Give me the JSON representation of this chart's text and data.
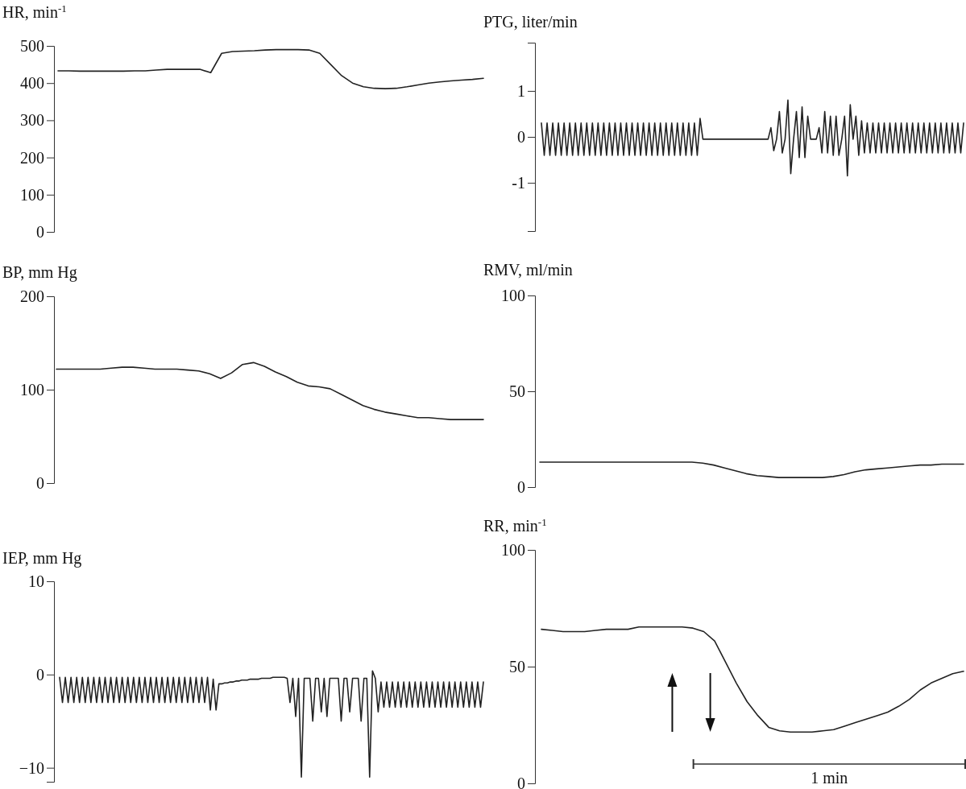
{
  "chart_data": [
    {
      "type": "line",
      "ylabel": "HR, min$^{-1}$",
      "ylim": [
        0,
        500
      ],
      "yticks": [
        0,
        100,
        200,
        300,
        400,
        500
      ],
      "categories": [
        null,
        null,
        null,
        null,
        null,
        null,
        null,
        null,
        null,
        null,
        null,
        null,
        null,
        null,
        null,
        null,
        null,
        null,
        null,
        null,
        null,
        null,
        null,
        null,
        null,
        null,
        null,
        null,
        null,
        null,
        null,
        null,
        null,
        null,
        null,
        null,
        null,
        null,
        null,
        null
      ],
      "series": [
        {
          "color": "#222222",
          "values": [
            433,
            433,
            432,
            432,
            432,
            432,
            432,
            433,
            433,
            435,
            437,
            437,
            437,
            437,
            428,
            480,
            485,
            486,
            487,
            489,
            490,
            490,
            490,
            489,
            480,
            450,
            420,
            400,
            390,
            386,
            385,
            386,
            390,
            395,
            400,
            403,
            406,
            408,
            410,
            413
          ]
        }
      ]
    },
    {
      "type": "line",
      "ylabel": "PTG, liter/min",
      "ylim": [
        -2.05,
        2.05
      ],
      "yticks": [
        {
          "value": -1,
          "label": "-1"
        },
        0,
        1
      ],
      "categories": [
        null,
        null,
        null,
        null,
        null,
        null,
        null,
        null,
        null,
        null,
        null,
        null,
        null,
        null,
        null,
        null,
        null,
        null,
        null,
        null,
        null,
        null,
        null,
        null,
        null,
        null,
        null,
        null,
        null,
        null,
        null,
        null,
        null,
        null,
        null,
        null,
        null,
        null,
        null,
        null,
        null,
        null,
        null,
        null,
        null,
        null,
        null,
        null,
        null,
        null,
        null,
        null,
        null,
        null,
        null,
        null,
        null,
        null,
        null,
        null,
        null,
        null,
        null,
        null,
        null,
        null,
        null,
        null,
        null,
        null,
        null,
        null,
        null,
        null,
        null,
        null,
        null,
        null,
        null,
        null,
        null,
        null,
        null,
        null,
        null,
        null,
        null,
        null,
        null,
        null,
        null,
        null,
        null,
        null,
        null,
        null,
        null,
        null,
        null,
        null,
        null,
        null,
        null,
        null,
        null,
        null,
        null,
        null,
        null,
        null,
        null,
        null,
        null,
        null,
        null,
        null,
        null,
        null,
        null,
        null,
        null,
        null,
        null,
        null,
        null,
        null,
        null,
        null,
        null,
        null,
        null,
        null,
        null,
        null,
        null,
        null,
        null,
        null,
        null,
        null,
        null,
        null,
        null,
        null,
        null,
        null,
        null,
        null,
        null,
        null
      ],
      "series": [
        {
          "color": "#222222",
          "values": [
            0.3,
            -0.4,
            0.3,
            -0.4,
            0.3,
            -0.4,
            0.3,
            -0.4,
            0.3,
            -0.4,
            0.3,
            -0.4,
            0.3,
            -0.4,
            0.3,
            -0.4,
            0.3,
            -0.4,
            0.3,
            -0.4,
            0.3,
            -0.4,
            0.3,
            -0.4,
            0.3,
            -0.4,
            0.3,
            -0.4,
            0.3,
            -0.4,
            0.3,
            -0.4,
            0.3,
            -0.4,
            0.3,
            -0.4,
            0.3,
            -0.4,
            0.3,
            -0.4,
            0.3,
            -0.4,
            0.3,
            -0.4,
            0.3,
            -0.4,
            0.3,
            -0.4,
            0.3,
            -0.4,
            0.3,
            -0.4,
            0.3,
            -0.4,
            0.3,
            -0.4,
            0.4,
            -0.05,
            -0.05,
            -0.05,
            -0.05,
            -0.05,
            -0.05,
            -0.05,
            -0.05,
            -0.05,
            -0.05,
            -0.05,
            -0.05,
            -0.05,
            -0.05,
            -0.05,
            -0.05,
            -0.05,
            -0.05,
            -0.05,
            -0.05,
            -0.05,
            -0.05,
            -0.05,
            -0.05,
            0.2,
            -0.3,
            -0.05,
            0.55,
            -0.35,
            -0.05,
            0.8,
            -0.8,
            -0.05,
            0.55,
            -0.45,
            0.65,
            -0.45,
            0.45,
            -0.05,
            -0.05,
            -0.05,
            0.2,
            -0.35,
            0.55,
            -0.35,
            0.45,
            -0.4,
            0.45,
            -0.4,
            -0.05,
            0.45,
            -0.85,
            0.7,
            -0.05,
            0.45,
            -0.4,
            0.35,
            -0.35,
            0.3,
            -0.35,
            0.3,
            -0.35,
            0.3,
            -0.35,
            0.3,
            -0.35,
            0.3,
            -0.35,
            0.3,
            -0.35,
            0.3,
            -0.35,
            0.3,
            -0.35,
            0.3,
            -0.35,
            0.3,
            -0.35,
            0.3,
            -0.35,
            0.3,
            -0.35,
            0.3,
            -0.35,
            0.3,
            -0.35,
            0.3,
            -0.35,
            0.3,
            -0.35,
            0.3,
            -0.35,
            0.3
          ]
        }
      ]
    },
    {
      "type": "line",
      "ylabel": "BP, mm Hg",
      "ylim": [
        0,
        200
      ],
      "yticks": [
        0,
        100,
        200
      ],
      "categories": [
        null,
        null,
        null,
        null,
        null,
        null,
        null,
        null,
        null,
        null,
        null,
        null,
        null,
        null,
        null,
        null,
        null,
        null,
        null,
        null,
        null,
        null,
        null,
        null,
        null,
        null,
        null,
        null,
        null,
        null,
        null,
        null,
        null,
        null,
        null,
        null,
        null,
        null,
        null,
        null
      ],
      "series": [
        {
          "color": "#222222",
          "values": [
            122,
            122,
            122,
            122,
            122,
            123,
            124,
            124,
            123,
            122,
            122,
            122,
            121,
            120,
            117,
            112,
            118,
            127,
            129,
            125,
            119,
            114,
            108,
            104,
            103,
            101,
            95,
            89,
            83,
            79,
            76,
            74,
            72,
            70,
            70,
            69,
            68,
            68,
            68,
            68
          ]
        }
      ]
    },
    {
      "type": "line",
      "ylabel": "RMV, ml/min",
      "ylim": [
        0,
        100
      ],
      "yticks": [
        0,
        50,
        100
      ],
      "categories": [
        null,
        null,
        null,
        null,
        null,
        null,
        null,
        null,
        null,
        null,
        null,
        null,
        null,
        null,
        null,
        null,
        null,
        null,
        null,
        null,
        null,
        null,
        null,
        null,
        null,
        null,
        null,
        null,
        null,
        null,
        null,
        null,
        null,
        null,
        null,
        null,
        null,
        null,
        null,
        null
      ],
      "series": [
        {
          "color": "#222222",
          "values": [
            13,
            13,
            13,
            13,
            13,
            13,
            13,
            13,
            13,
            13,
            13,
            13,
            13,
            13,
            13,
            12.5,
            11.5,
            10,
            8.5,
            7,
            6,
            5.5,
            5,
            5,
            5,
            5,
            5,
            5.5,
            6.5,
            8,
            9,
            9.5,
            10,
            10.5,
            11,
            11.5,
            11.5,
            12,
            12,
            12
          ]
        }
      ]
    },
    {
      "type": "line",
      "ylabel": "IEP, mm Hg",
      "ylim": [
        -11.5,
        10
      ],
      "yticks": [
        {
          "value": -10,
          "label": "−10"
        },
        0,
        10
      ],
      "categories": [
        null,
        null,
        null,
        null,
        null,
        null,
        null,
        null,
        null,
        null,
        null,
        null,
        null,
        null,
        null,
        null,
        null,
        null,
        null,
        null,
        null,
        null,
        null,
        null,
        null,
        null,
        null,
        null,
        null,
        null,
        null,
        null,
        null,
        null,
        null,
        null,
        null,
        null,
        null,
        null,
        null,
        null,
        null,
        null,
        null,
        null,
        null,
        null,
        null,
        null,
        null,
        null,
        null,
        null,
        null,
        null,
        null,
        null,
        null,
        null,
        null,
        null,
        null,
        null,
        null,
        null,
        null,
        null,
        null,
        null,
        null,
        null,
        null,
        null,
        null,
        null,
        null,
        null,
        null,
        null,
        null,
        null,
        null,
        null,
        null,
        null,
        null,
        null,
        null,
        null,
        null,
        null,
        null,
        null,
        null,
        null,
        null,
        null,
        null,
        null,
        null,
        null,
        null,
        null,
        null,
        null,
        null,
        null,
        null,
        null,
        null,
        null,
        null,
        null,
        null,
        null,
        null,
        null,
        null,
        null,
        null,
        null,
        null,
        null,
        null,
        null,
        null,
        null,
        null,
        null,
        null,
        null,
        null,
        null,
        null,
        null,
        null,
        null,
        null,
        null,
        null,
        null,
        null,
        null,
        null,
        null,
        null,
        null,
        null,
        null
      ],
      "series": [
        {
          "color": "#222222",
          "values": [
            -0.3,
            -3,
            -0.3,
            -3,
            -0.3,
            -3,
            -0.3,
            -3,
            -0.3,
            -3,
            -0.3,
            -3,
            -0.3,
            -3,
            -0.3,
            -3,
            -0.3,
            -3,
            -0.3,
            -3,
            -0.3,
            -3,
            -0.3,
            -3,
            -0.3,
            -3,
            -0.3,
            -3,
            -0.3,
            -3,
            -0.3,
            -3,
            -0.3,
            -3,
            -0.3,
            -3,
            -0.3,
            -3,
            -0.3,
            -3,
            -0.3,
            -3,
            -0.3,
            -3,
            -0.3,
            -3,
            -0.3,
            -3,
            -0.3,
            -3,
            -0.3,
            -3,
            -0.3,
            -3.8,
            -0.5,
            -3.8,
            -1,
            -1,
            -0.9,
            -0.9,
            -0.8,
            -0.8,
            -0.7,
            -0.7,
            -0.6,
            -0.6,
            -0.6,
            -0.5,
            -0.5,
            -0.5,
            -0.5,
            -0.4,
            -0.4,
            -0.4,
            -0.4,
            -0.3,
            -0.3,
            -0.3,
            -0.3,
            -0.3,
            -0.4,
            -3,
            -0.4,
            -4.5,
            -0.4,
            -11,
            -0.4,
            -0.4,
            -0.4,
            -5,
            -0.4,
            -0.4,
            -4,
            -0.4,
            -4.5,
            -0.4,
            -0.4,
            -0.4,
            -0.4,
            -5,
            -0.4,
            -0.4,
            -4,
            -0.4,
            -0.4,
            -0.4,
            -5,
            -0.4,
            -0.4,
            -11,
            0.4,
            -0.4,
            -4,
            -0.8,
            -3.5,
            -0.8,
            -3.5,
            -0.8,
            -3.5,
            -0.8,
            -3.5,
            -0.8,
            -3.5,
            -0.8,
            -3.5,
            -0.8,
            -3.5,
            -0.8,
            -3.5,
            -0.8,
            -3.5,
            -0.8,
            -3.5,
            -0.8,
            -3.5,
            -0.8,
            -3.5,
            -0.8,
            -3.5,
            -0.8,
            -3.5,
            -0.8,
            -3.5,
            -0.8,
            -3.5,
            -0.8,
            -3.5,
            -0.8,
            -3.5,
            -0.8
          ]
        }
      ]
    },
    {
      "type": "line",
      "ylabel": "RR, min$^{-1}$",
      "ylim": [
        0,
        100
      ],
      "yticks": [
        0,
        50,
        100
      ],
      "annotations": [
        "1 min"
      ],
      "categories": [
        null,
        null,
        null,
        null,
        null,
        null,
        null,
        null,
        null,
        null,
        null,
        null,
        null,
        null,
        null,
        null,
        null,
        null,
        null,
        null,
        null,
        null,
        null,
        null,
        null,
        null,
        null,
        null,
        null,
        null,
        null,
        null,
        null,
        null,
        null,
        null,
        null,
        null,
        null,
        null
      ],
      "series": [
        {
          "color": "#222222",
          "values": [
            66,
            65.5,
            65,
            65,
            65,
            65.5,
            66,
            66,
            66,
            67,
            67,
            67,
            67,
            67,
            66.5,
            65,
            61,
            52,
            43,
            35,
            29,
            24,
            22.5,
            22,
            22,
            22,
            22.5,
            23,
            24.5,
            26,
            27.5,
            29,
            30.5,
            33,
            36,
            40,
            43,
            45,
            47,
            48
          ]
        }
      ]
    }
  ]
}
